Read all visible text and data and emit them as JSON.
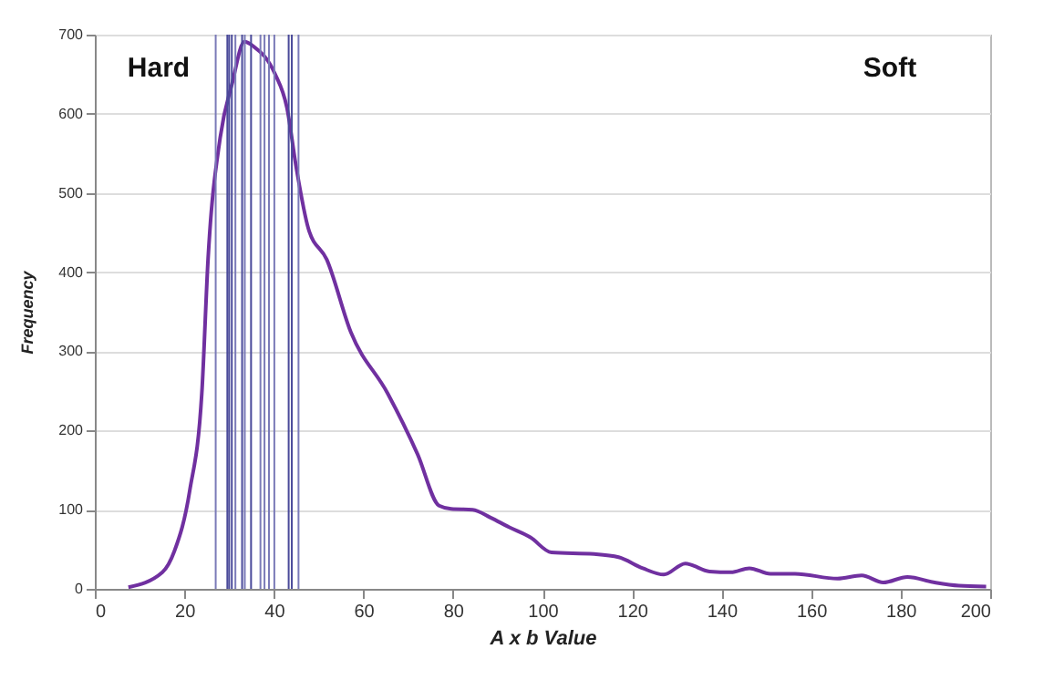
{
  "chart_data": {
    "type": "line",
    "xlabel": "A x b Value",
    "ylabel": "Frequency",
    "annotations": [
      "Hard",
      "Soft"
    ],
    "x": [
      7.5,
      15.1,
      17.8,
      21.2,
      23.9,
      25.3,
      28.0,
      30.7,
      33.4,
      35.5,
      40.2,
      42.9,
      45.0,
      47.7,
      51.8,
      57.2,
      65.4,
      72.1,
      76.9,
      79.6,
      84.4,
      88.4,
      92.5,
      97.3,
      102.0,
      111.5,
      117.0,
      122.4,
      127.1,
      131.9,
      137.3,
      142.1,
      146.2,
      150.9,
      156.4,
      165.9,
      171.3,
      176.1,
      181.5,
      187.6,
      193.0,
      199.1
    ],
    "series": [
      {
        "color": "#7030a0",
        "values": [
          2,
          21,
          48,
          124,
          247,
          417,
          570,
          639,
          691,
          685,
          651,
          608,
          532,
          455,
          416,
          324,
          247,
          170,
          105,
          101,
          100,
          90,
          78,
          65,
          46,
          44,
          40,
          26,
          18,
          32,
          22,
          21,
          26,
          19,
          19,
          13,
          17,
          8,
          15,
          8,
          4,
          3
        ]
      }
    ],
    "xlim": [
      0,
      200
    ],
    "xticks": [
      0,
      20,
      40,
      60,
      80,
      100,
      120,
      140,
      160,
      180,
      200
    ],
    "ylim": [
      0,
      700
    ],
    "yticks": [
      0,
      100,
      200,
      300,
      400,
      500,
      600,
      700
    ],
    "grid": "y",
    "marker": "none",
    "line_style": "solid",
    "ref_lines": [
      {
        "axis": "x",
        "value": 27.0,
        "color": "#7a7ab8"
      },
      {
        "axis": "x",
        "value": 29.6,
        "color": "#4a4a9a"
      },
      {
        "axis": "x",
        "value": 30.0,
        "color": "#4a4a9a"
      },
      {
        "axis": "x",
        "value": 30.6,
        "color": "#4a4a9a"
      },
      {
        "axis": "x",
        "value": 31.4,
        "color": "#7a7ab8"
      },
      {
        "axis": "x",
        "value": 32.9,
        "color": "#4a4a9a"
      },
      {
        "axis": "x",
        "value": 33.5,
        "color": "#7a7ab8"
      },
      {
        "axis": "x",
        "value": 34.9,
        "color": "#4a4a9a"
      },
      {
        "axis": "x",
        "value": 37.0,
        "color": "#7a7ab8"
      },
      {
        "axis": "x",
        "value": 37.9,
        "color": "#7a7ab8"
      },
      {
        "axis": "x",
        "value": 38.9,
        "color": "#7a7ab8"
      },
      {
        "axis": "x",
        "value": 40.1,
        "color": "#7a7ab8"
      },
      {
        "axis": "x",
        "value": 43.3,
        "color": "#4a4a9a"
      },
      {
        "axis": "x",
        "value": 44.0,
        "color": "#4a4a9a"
      },
      {
        "axis": "x",
        "value": 45.5,
        "color": "#7a7ab8"
      }
    ]
  }
}
